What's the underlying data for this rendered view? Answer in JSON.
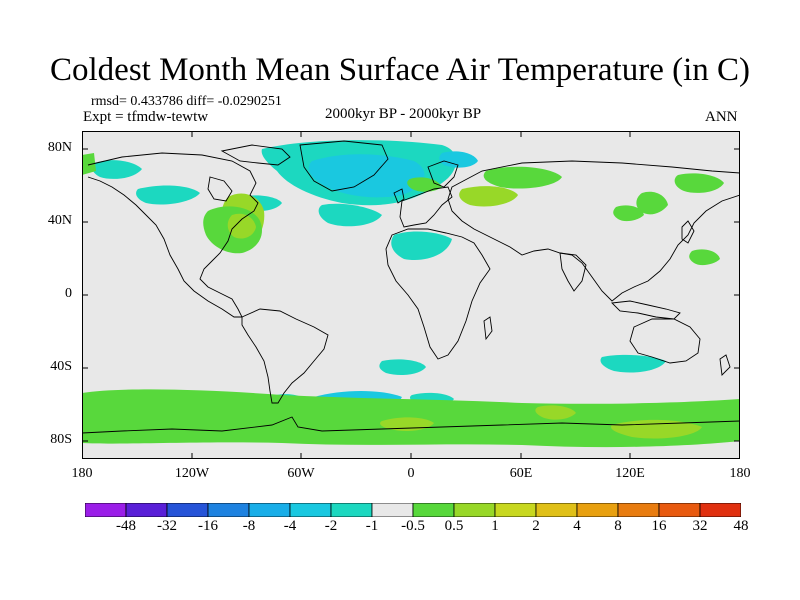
{
  "title": "Coldest Month Mean Surface Air Temperature (in C)",
  "stats": "rmsd= 0.433786 diff= -0.0290251",
  "experiment": "Expt = tfmdw-tewtw",
  "period": "2000kyr BP - 2000kyr BP",
  "season": "ANN",
  "lat_labels": [
    "80N",
    "40N",
    "0",
    "40S",
    "80S"
  ],
  "lon_labels": [
    "180",
    "120W",
    "60W",
    "0",
    "60E",
    "120E",
    "180"
  ],
  "colorbar": {
    "labels": [
      "-48",
      "-32",
      "-16",
      "-8",
      "-4",
      "-2",
      "-1",
      "-0.5",
      "0.5",
      "1",
      "2",
      "4",
      "8",
      "16",
      "32",
      "48"
    ],
    "colors": [
      "#9b1ee8",
      "#5a20d8",
      "#2654d8",
      "#1e82e0",
      "#19aee8",
      "#1ac8e0",
      "#1cd8c0",
      "#e8e8e8",
      "#58d83c",
      "#98d828",
      "#c8d820",
      "#e0c018",
      "#e8a010",
      "#e87c10",
      "#e85a10",
      "#e03010"
    ]
  },
  "colors": {
    "ocean_bg": "#e8e8e8",
    "cyan": "#1ac8e0",
    "teal": "#1cd8c0",
    "green": "#58d83c",
    "lime": "#98d828"
  }
}
